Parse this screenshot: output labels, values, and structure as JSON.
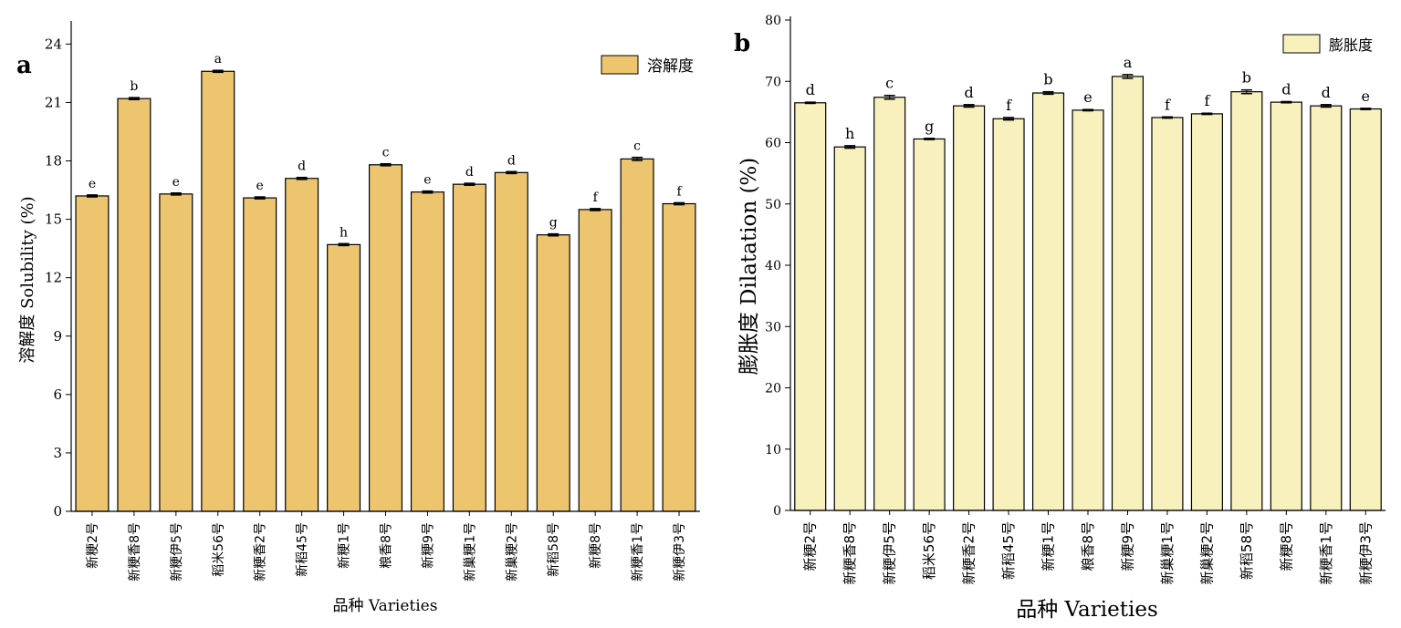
{
  "chart_data": [
    {
      "panel_label": "a",
      "type": "bar",
      "ylabel": "溶解度 Solubility (%)",
      "xlabel": "品种 Varieties",
      "legend": {
        "label": "溶解度",
        "placement": "top-right"
      },
      "color": "#EDC56E",
      "ylim": [
        0,
        25
      ],
      "yticks": [
        "0",
        "3",
        "6",
        "9",
        "12",
        "15",
        "18",
        "21",
        "24"
      ],
      "categories": [
        "新粳2号",
        "新粳香8号",
        "新粳伊5号",
        "稻米56号",
        "新粳香2号",
        "新稻45号",
        "新粳1号",
        "粮香8号",
        "新粳9号",
        "新巢粳1号",
        "新巢粳2号",
        "新稻58号",
        "新粳8号",
        "新粳香1号",
        "新粳伊3号"
      ],
      "values": [
        16.2,
        21.2,
        16.3,
        22.6,
        16.1,
        17.1,
        13.7,
        17.8,
        16.4,
        16.8,
        17.4,
        14.2,
        15.5,
        18.1,
        15.8
      ],
      "errors": [
        0.05,
        0.05,
        0.05,
        0.05,
        0.05,
        0.05,
        0.05,
        0.05,
        0.05,
        0.05,
        0.05,
        0.05,
        0.05,
        0.08,
        0.05
      ],
      "letters": [
        "e",
        "b",
        "e",
        "a",
        "e",
        "d",
        "h",
        "c",
        "e",
        "d",
        "d",
        "g",
        "f",
        "c",
        "f"
      ]
    },
    {
      "panel_label": "b",
      "type": "bar",
      "ylabel": "膨胀度 Dilatation (%)",
      "xlabel": "品种 Varieties",
      "legend": {
        "label": "膨胀度",
        "placement": "top-right"
      },
      "color": "#F8F1BE",
      "ylim": [
        0,
        80
      ],
      "yticks": [
        "0",
        "10",
        "20",
        "30",
        "40",
        "50",
        "60",
        "70",
        "80"
      ],
      "categories": [
        "新粳2号",
        "新粳香8号",
        "新粳伊5号",
        "稻米56号",
        "新粳香2号",
        "新稻45号",
        "新粳1号",
        "粮香8号",
        "新粳9号",
        "新巢粳1号",
        "新巢粳2号",
        "新稻58号",
        "新粳8号",
        "新粳香1号",
        "新粳伊3号"
      ],
      "values": [
        66.5,
        59.3,
        67.4,
        60.6,
        66.0,
        63.9,
        68.1,
        65.3,
        70.8,
        64.1,
        64.7,
        68.3,
        66.6,
        66.0,
        65.5
      ],
      "errors": [
        0.1,
        0.2,
        0.3,
        0.1,
        0.2,
        0.2,
        0.2,
        0.1,
        0.3,
        0.1,
        0.1,
        0.3,
        0.1,
        0.2,
        0.1
      ],
      "letters": [
        "d",
        "h",
        "c",
        "g",
        "d",
        "f",
        "b",
        "e",
        "a",
        "f",
        "f",
        "b",
        "d",
        "d",
        "e"
      ]
    }
  ]
}
